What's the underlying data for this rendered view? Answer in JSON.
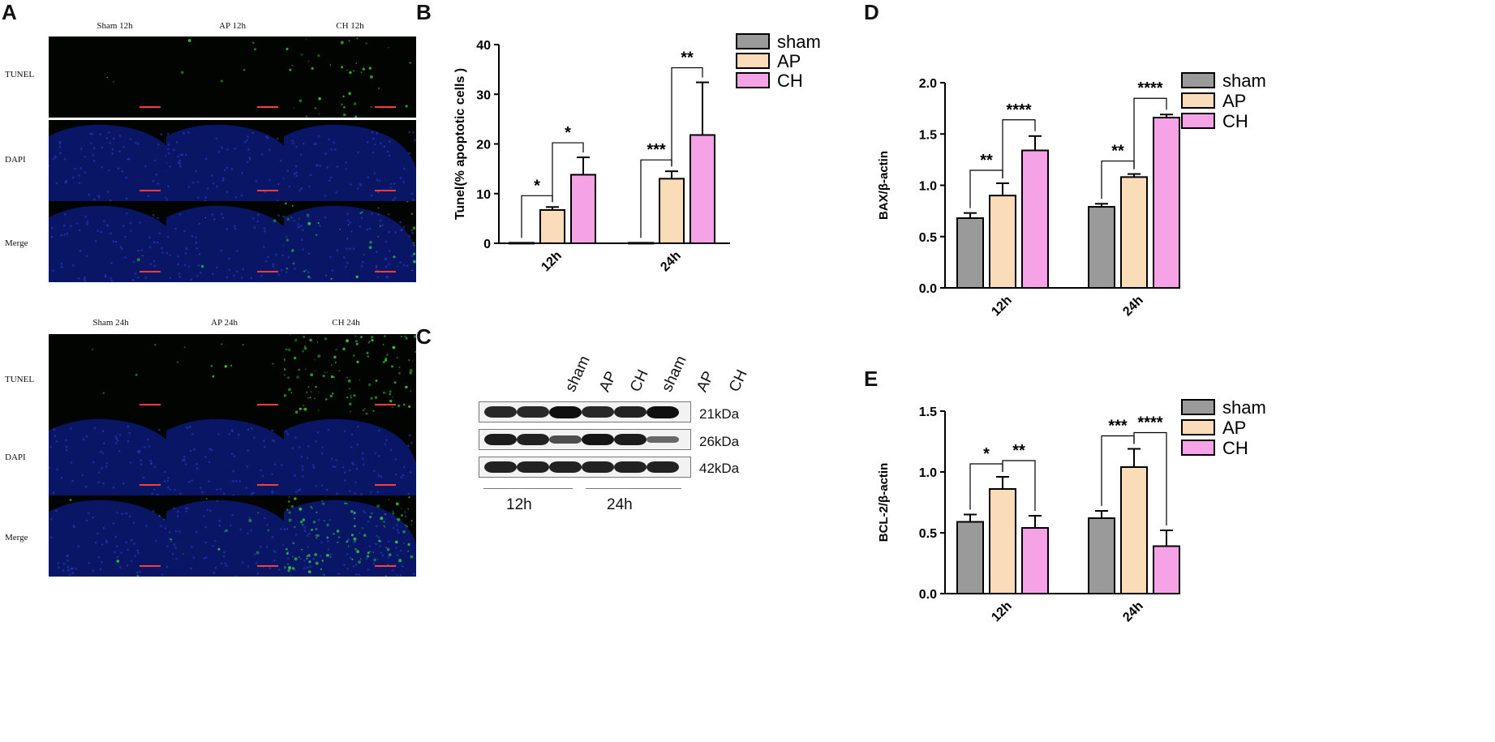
{
  "panel_letters": {
    "A": "A",
    "B": "B",
    "C": "C",
    "D": "D",
    "E": "E"
  },
  "microscopy": {
    "groups": [
      {
        "columns": [
          "Sham 12h",
          "AP 12h",
          "CH 12h"
        ]
      },
      {
        "columns": [
          "Sham 24h",
          "AP 24h",
          "CH 24h"
        ]
      }
    ],
    "rows": [
      "TUNEL",
      "DAPI",
      "Merge"
    ]
  },
  "colors": {
    "sham": "#9a9a9a",
    "AP": "#fbdcb8",
    "CH": "#f5a3e6",
    "dapi": "#0a1a7a",
    "tunel": "#3be33b"
  },
  "western_blot": {
    "lanes": [
      "sham",
      "AP",
      "CH",
      "sham",
      "AP",
      "CH"
    ],
    "proteins": [
      {
        "name": "BAX",
        "kda": "21kDa",
        "band_intensity": [
          0.8,
          0.8,
          1.0,
          0.8,
          0.85,
          1.0
        ]
      },
      {
        "name": "BCL-2",
        "kda": "26kDa",
        "band_intensity": [
          0.9,
          0.85,
          0.5,
          0.95,
          0.9,
          0.3
        ]
      },
      {
        "name": "β-actin",
        "kda": "42kDa",
        "band_intensity": [
          0.85,
          0.85,
          0.85,
          0.85,
          0.85,
          0.85
        ]
      }
    ],
    "timepoints": [
      "12h",
      "24h"
    ]
  },
  "chart_data": [
    {
      "id": "B",
      "type": "bar",
      "categories": [
        "12h",
        "24h"
      ],
      "series": [
        {
          "name": "sham",
          "values": [
            0.1,
            0.1
          ],
          "errors": [
            0,
            0
          ]
        },
        {
          "name": "AP",
          "values": [
            6.7,
            13.0
          ],
          "errors": [
            0.6,
            1.5
          ]
        },
        {
          "name": "CH",
          "values": [
            13.8,
            21.8
          ],
          "errors": [
            3.5,
            10.6
          ]
        }
      ],
      "ylabel": "Tunel(% apoptotic cells )",
      "ylim": [
        0,
        40
      ],
      "yticks": [
        "0",
        "10",
        "20",
        "30",
        "40"
      ],
      "legend": "top-right",
      "significance": [
        {
          "category": 0,
          "pair": [
            "sham",
            "AP"
          ],
          "label": "*"
        },
        {
          "category": 0,
          "pair": [
            "AP",
            "CH"
          ],
          "label": "*"
        },
        {
          "category": 1,
          "pair": [
            "sham",
            "AP"
          ],
          "label": "***"
        },
        {
          "category": 1,
          "pair": [
            "AP",
            "CH"
          ],
          "label": "**"
        }
      ]
    },
    {
      "id": "D",
      "type": "bar",
      "categories": [
        "12h",
        "24h"
      ],
      "series": [
        {
          "name": "sham",
          "values": [
            0.68,
            0.79
          ],
          "errors": [
            0.05,
            0.03
          ]
        },
        {
          "name": "AP",
          "values": [
            0.9,
            1.08
          ],
          "errors": [
            0.12,
            0.03
          ]
        },
        {
          "name": "CH",
          "values": [
            1.34,
            1.66
          ],
          "errors": [
            0.14,
            0.03
          ]
        }
      ],
      "ylabel": "BAX/β-actin",
      "ylim": [
        0,
        2.0
      ],
      "yticks": [
        "0.0",
        "0.5",
        "1.0",
        "1.5",
        "2.0"
      ],
      "legend": "top-right",
      "significance": [
        {
          "category": 0,
          "pair": [
            "sham",
            "AP"
          ],
          "label": "**"
        },
        {
          "category": 0,
          "pair": [
            "AP",
            "CH"
          ],
          "label": "****"
        },
        {
          "category": 1,
          "pair": [
            "sham",
            "AP"
          ],
          "label": "**"
        },
        {
          "category": 1,
          "pair": [
            "AP",
            "CH"
          ],
          "label": "****"
        }
      ]
    },
    {
      "id": "E",
      "type": "bar",
      "categories": [
        "12h",
        "24h"
      ],
      "series": [
        {
          "name": "sham",
          "values": [
            0.59,
            0.62
          ],
          "errors": [
            0.06,
            0.06
          ]
        },
        {
          "name": "AP",
          "values": [
            0.86,
            1.04
          ],
          "errors": [
            0.1,
            0.15
          ]
        },
        {
          "name": "CH",
          "values": [
            0.54,
            0.39
          ],
          "errors": [
            0.1,
            0.13
          ]
        }
      ],
      "ylabel": "BCL-2/β-actin",
      "ylim": [
        0,
        1.5
      ],
      "yticks": [
        "0.0",
        "0.5",
        "1.0",
        "1.5"
      ],
      "legend": "top-right",
      "significance": [
        {
          "category": 0,
          "pair": [
            "sham",
            "AP"
          ],
          "label": "*"
        },
        {
          "category": 0,
          "pair": [
            "AP",
            "CH"
          ],
          "label": "**"
        },
        {
          "category": 1,
          "pair": [
            "sham",
            "AP"
          ],
          "label": "***"
        },
        {
          "category": 1,
          "pair": [
            "AP",
            "CH"
          ],
          "label": "****"
        }
      ]
    }
  ]
}
